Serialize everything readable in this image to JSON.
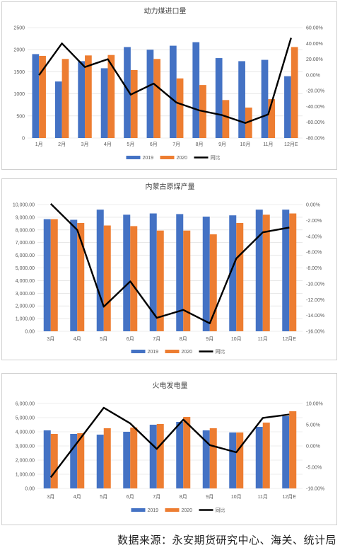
{
  "colors": {
    "s2019": "#4472C4",
    "s2020": "#ED7D31",
    "yoy": "#000000",
    "grid": "#D9D9D9"
  },
  "chart_data": [
    {
      "type": "bar",
      "title": "动力煤进口量",
      "categories": [
        "1月",
        "2月",
        "3月",
        "4月",
        "5月",
        "6月",
        "7月",
        "8月",
        "9月",
        "10月",
        "11月",
        "12月E"
      ],
      "series": [
        {
          "name": "2019",
          "type": "bar",
          "axis": "left",
          "values": [
            1900,
            1280,
            1740,
            1580,
            2060,
            2000,
            2090,
            2170,
            1810,
            1740,
            1770,
            1400
          ]
        },
        {
          "name": "2020",
          "type": "bar",
          "axis": "left",
          "values": [
            1860,
            1790,
            1870,
            1880,
            1540,
            1790,
            1350,
            1200,
            860,
            690,
            880,
            2060
          ]
        },
        {
          "name": "同比",
          "type": "line",
          "axis": "right",
          "values": [
            -0.3,
            40,
            10,
            20,
            -25,
            -11,
            -35,
            -45,
            -51,
            -61,
            -50,
            47
          ]
        }
      ],
      "ylim_left": [
        0,
        2500
      ],
      "yticks_left": [
        "0",
        "500",
        "1000",
        "1500",
        "2000",
        "2500"
      ],
      "ylim_right": [
        -80,
        60
      ],
      "yticks_right": [
        "-80.00%",
        "-60.00%",
        "-40.00%",
        "-20.00%",
        "0.00%",
        "20.00%",
        "40.00%",
        "60.00%"
      ],
      "legend": [
        "2019",
        "2020",
        "同比"
      ],
      "legend_position": "bottom"
    },
    {
      "type": "bar",
      "title": "内蒙古原煤产量",
      "categories": [
        "3月",
        "4月",
        "5月",
        "6月",
        "7月",
        "8月",
        "9月",
        "10月",
        "11月",
        "12月E"
      ],
      "series": [
        {
          "name": "2019",
          "type": "bar",
          "axis": "left",
          "values": [
            8850,
            8800,
            9600,
            9200,
            9300,
            9250,
            9050,
            9150,
            9600,
            9600
          ]
        },
        {
          "name": "2020",
          "type": "bar",
          "axis": "left",
          "values": [
            8850,
            8550,
            8350,
            8300,
            7950,
            7950,
            7650,
            8550,
            9200,
            9300
          ]
        },
        {
          "name": "同比",
          "type": "line",
          "axis": "right",
          "values": [
            0.1,
            -3.2,
            -12.9,
            -9.7,
            -14.3,
            -13.3,
            -15.0,
            -6.8,
            -3.5,
            -2.9
          ]
        }
      ],
      "ylim_left": [
        0,
        10000
      ],
      "yticks_left": [
        "0.00",
        "1,000.00",
        "2,000.00",
        "3,000.00",
        "4,000.00",
        "5,000.00",
        "6,000.00",
        "7,000.00",
        "8,000.00",
        "9,000.00",
        "10,000.00"
      ],
      "ylim_right": [
        -16,
        0
      ],
      "yticks_right": [
        "-16.00%",
        "-14.00%",
        "-12.00%",
        "-10.00%",
        "-8.00%",
        "-6.00%",
        "-4.00%",
        "-2.00%",
        "0.00%"
      ],
      "legend": [
        "2019",
        "2020",
        "同比"
      ],
      "legend_position": "bottom"
    },
    {
      "type": "bar",
      "title": "火电发电量",
      "categories": [
        "3月",
        "4月",
        "5月",
        "6月",
        "7月",
        "8月",
        "9月",
        "10月",
        "11月",
        "12月E"
      ],
      "series": [
        {
          "name": "2019",
          "type": "bar",
          "axis": "left",
          "values": [
            4100,
            3850,
            3800,
            4000,
            4500,
            4700,
            4100,
            3950,
            4350,
            5100
          ]
        },
        {
          "name": "2020",
          "type": "bar",
          "axis": "left",
          "values": [
            3850,
            3900,
            4250,
            4300,
            4550,
            5050,
            4250,
            3950,
            4650,
            5450
          ]
        },
        {
          "name": "同比",
          "type": "line",
          "axis": "right",
          "values": [
            -7.4,
            0.8,
            9.0,
            5.3,
            -0.7,
            6.2,
            0.2,
            -1.5,
            6.6,
            7.4
          ]
        }
      ],
      "ylim_left": [
        0,
        6000
      ],
      "yticks_left": [
        "0.00",
        "1,000.00",
        "2,000.00",
        "3,000.00",
        "4,000.00",
        "5,000.00",
        "6,000.00"
      ],
      "ylim_right": [
        -10,
        10
      ],
      "yticks_right": [
        "-10.00%",
        "-5.00%",
        "0.00%",
        "5.00%",
        "10.00%"
      ],
      "legend": [
        "2019",
        "2020",
        "同比"
      ],
      "legend_position": "bottom"
    }
  ],
  "source_text": "数据来源：永安期货研究中心、海关、统计局"
}
